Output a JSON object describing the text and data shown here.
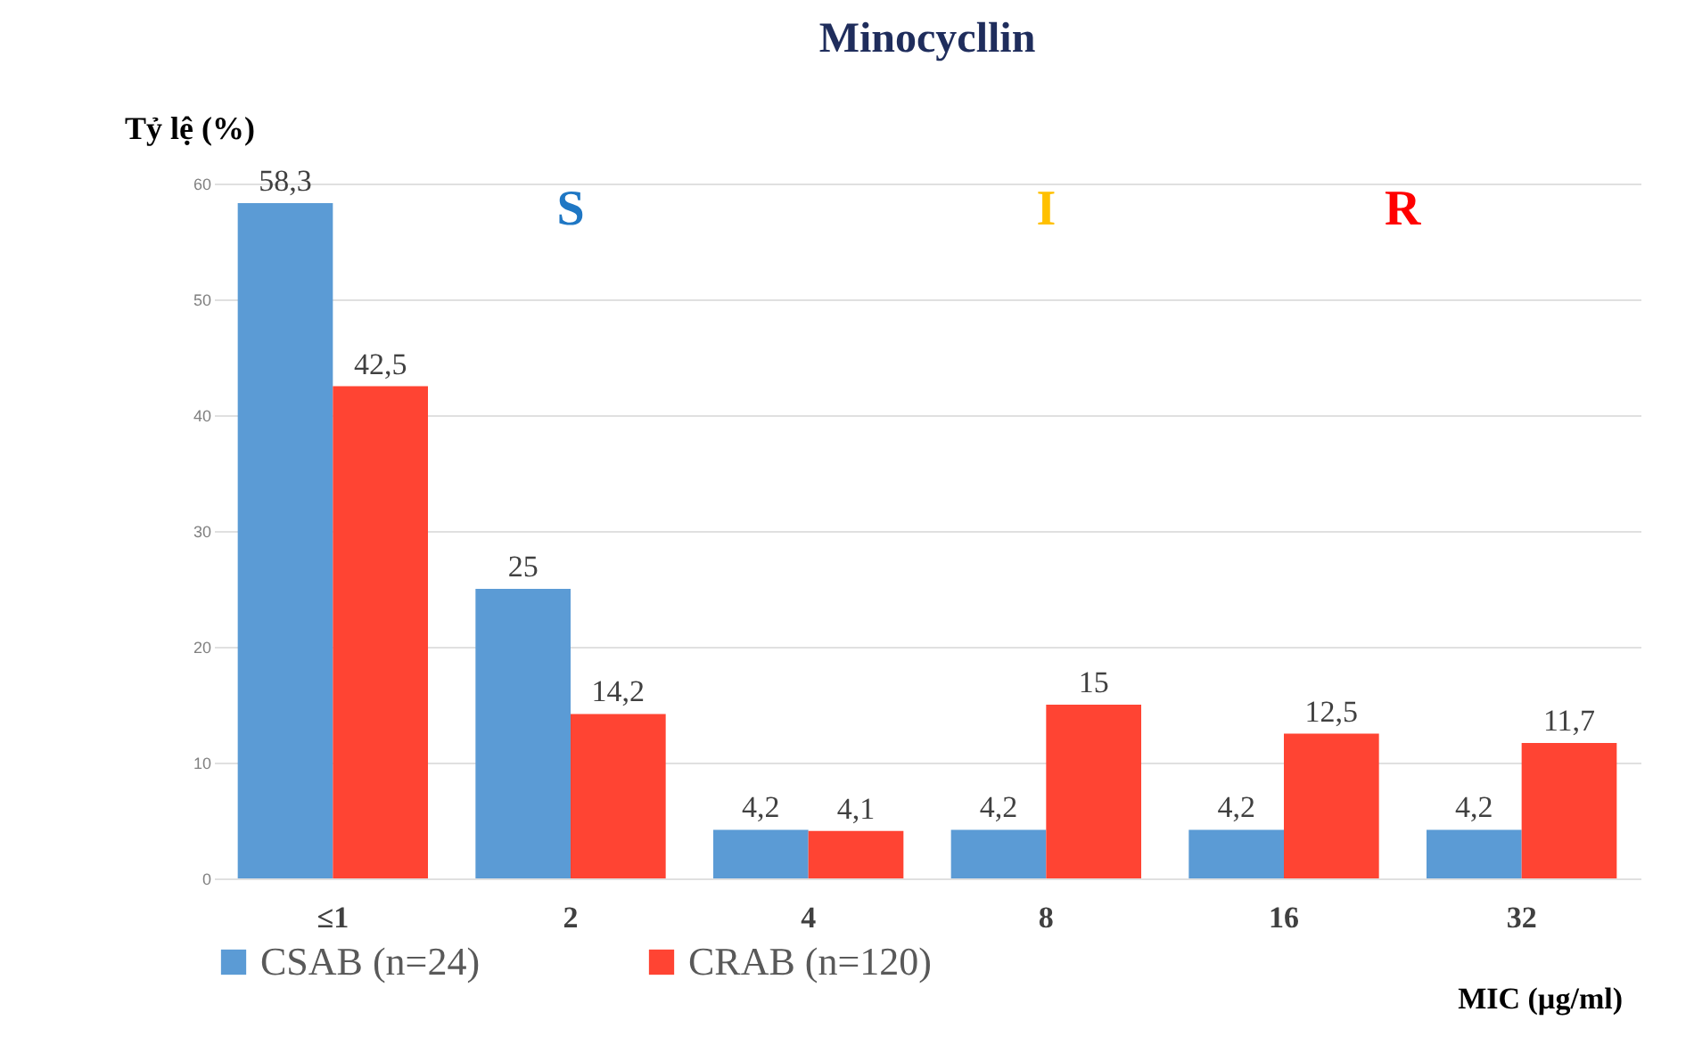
{
  "chart_data": {
    "type": "bar",
    "title": "Minocycllin",
    "ylabel": "Tỷ lệ (%)",
    "xlabel": "MIC (µg/ml)",
    "categories": [
      "≤1",
      "2",
      "4",
      "8",
      "16",
      "32"
    ],
    "series": [
      {
        "name": "CSAB (n=24)",
        "color": "#5b9bd5",
        "values": [
          58.3,
          25,
          4.2,
          4.2,
          4.2,
          4.2
        ],
        "value_labels": [
          "58,3",
          "25",
          "4,2",
          "4,2",
          "4,2",
          "4,2"
        ]
      },
      {
        "name": "CRAB (n=120)",
        "color": "#ff4433",
        "values": [
          42.5,
          14.2,
          4.1,
          15,
          12.5,
          11.7
        ],
        "value_labels": [
          "42,5",
          "14,2",
          "4,1",
          "15",
          "12,5",
          "11,7"
        ]
      }
    ],
    "ylim": [
      0,
      60
    ],
    "yticks": [
      0,
      10,
      20,
      30,
      40,
      50,
      60
    ],
    "grid": "y",
    "legend": "bottom",
    "annotations": [
      "S",
      "I",
      "R"
    ]
  }
}
